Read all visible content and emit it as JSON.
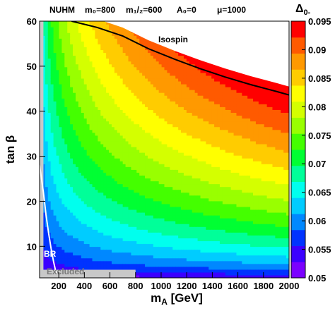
{
  "chart_data": {
    "type": "heatmap",
    "header": {
      "model": "NUHM",
      "m0": "m₀=800",
      "m12": "m₁/₂=600",
      "a0": "A₀=0",
      "mu": "μ=1000"
    },
    "xlabel": "m_A [GeV]",
    "ylabel": "tan β",
    "zlabel": "Δ₀₋",
    "xlim": [
      50,
      2000
    ],
    "ylim": [
      3,
      60
    ],
    "zlim": [
      0.05,
      0.095
    ],
    "x_ticks": [
      "200",
      "400",
      "600",
      "800",
      "1000",
      "1200",
      "1400",
      "1600",
      "1800",
      "2000"
    ],
    "x_tick_values": [
      200,
      400,
      600,
      800,
      1000,
      1200,
      1400,
      1600,
      1800,
      2000
    ],
    "y_ticks": [
      "10",
      "20",
      "30",
      "40",
      "50",
      "60"
    ],
    "y_tick_values": [
      10,
      20,
      30,
      40,
      50,
      60
    ],
    "z_ticks": [
      "0.05",
      "0.055",
      "0.06",
      "0.065",
      "0.07",
      "0.075",
      "0.08",
      "0.085",
      "0.09",
      "0.095"
    ],
    "z_tick_values": [
      0.05,
      0.055,
      0.06,
      0.065,
      0.07,
      0.075,
      0.08,
      0.085,
      0.09,
      0.095
    ],
    "colormap": [
      "#7b00ff",
      "#3b00ff",
      "#0033ff",
      "#0088ff",
      "#00ccff",
      "#00ffee",
      "#00ff99",
      "#00ff33",
      "#44ff00",
      "#99ff00",
      "#d4ff00",
      "#ffff00",
      "#ffcc00",
      "#ff9900",
      "#ff5a00",
      "#ff0000"
    ],
    "excluded_color": "#c8c8c8",
    "annotations": {
      "isospin": "Isospin",
      "br": "BR",
      "excluded": "Excluded"
    },
    "isospin_boundary": {
      "x": [
        300,
        500,
        700,
        900,
        1100,
        1300,
        1500,
        1700,
        1900,
        2000
      ],
      "y": [
        60,
        58.6,
        56.7,
        53.9,
        51.6,
        49.5,
        47.6,
        45.9,
        44.4,
        43.6
      ]
    },
    "br_boundary": {
      "x": [
        50,
        80,
        100,
        120,
        140,
        160,
        180
      ],
      "y": [
        28,
        22,
        17,
        13,
        9.5,
        6.5,
        4
      ]
    }
  }
}
